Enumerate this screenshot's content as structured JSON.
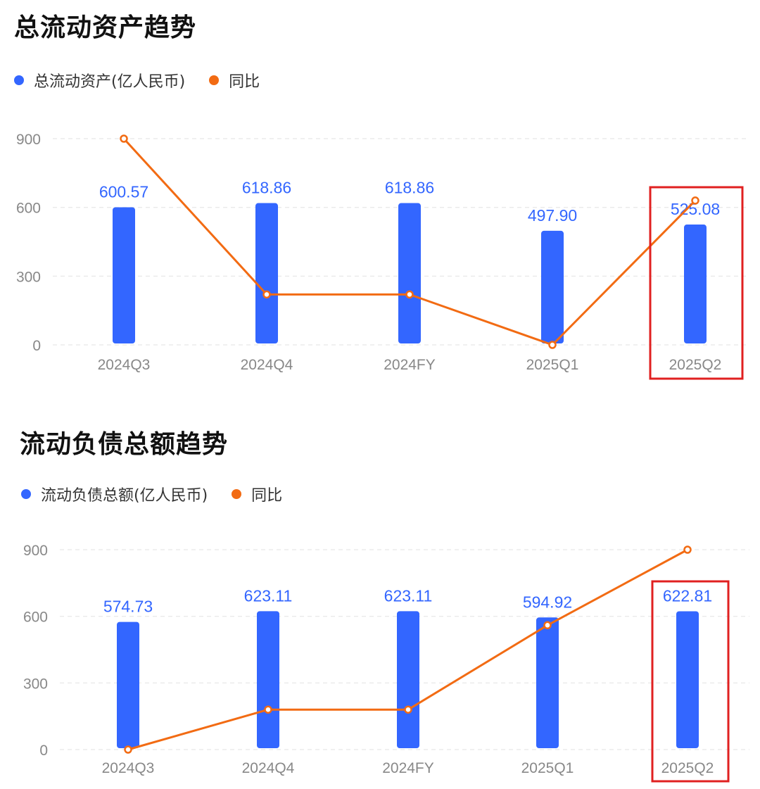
{
  "colors": {
    "bar": "#3366ff",
    "line": "#f26b13",
    "highlight": "#e02020",
    "axis_text": "#888888",
    "grid": "#e6e6e6"
  },
  "chart_data": [
    {
      "type": "bar",
      "title": "总流动资产趋势",
      "categories": [
        "2024Q3",
        "2024Q4",
        "2024FY",
        "2025Q1",
        "2025Q2"
      ],
      "series": [
        {
          "name": "总流动资产(亿人民币)",
          "type": "bar",
          "values": [
            600.57,
            618.86,
            618.86,
            497.9,
            525.08
          ],
          "labels": [
            "600.57",
            "618.86",
            "618.86",
            "497.90",
            "525.08"
          ]
        },
        {
          "name": "同比",
          "type": "line",
          "values": [
            900,
            220,
            220,
            0,
            630
          ]
        }
      ],
      "y_ticks": [
        "900",
        "600",
        "300",
        "0"
      ],
      "ylim": [
        0,
        900
      ],
      "grid": true,
      "legend_position": "top-left",
      "highlighted_category": "2025Q2"
    },
    {
      "type": "bar",
      "title": "流动负债总额趋势",
      "categories": [
        "2024Q3",
        "2024Q4",
        "2024FY",
        "2025Q1",
        "2025Q2"
      ],
      "series": [
        {
          "name": "流动负债总额(亿人民币)",
          "type": "bar",
          "values": [
            574.73,
            623.11,
            623.11,
            594.92,
            622.81
          ],
          "labels": [
            "574.73",
            "623.11",
            "623.11",
            "594.92",
            "622.81"
          ]
        },
        {
          "name": "同比",
          "type": "line",
          "values": [
            0,
            180,
            180,
            560,
            900
          ]
        }
      ],
      "y_ticks": [
        "900",
        "600",
        "300",
        "0"
      ],
      "ylim": [
        0,
        900
      ],
      "grid": true,
      "legend_position": "top-left",
      "highlighted_category": "2025Q2"
    }
  ]
}
